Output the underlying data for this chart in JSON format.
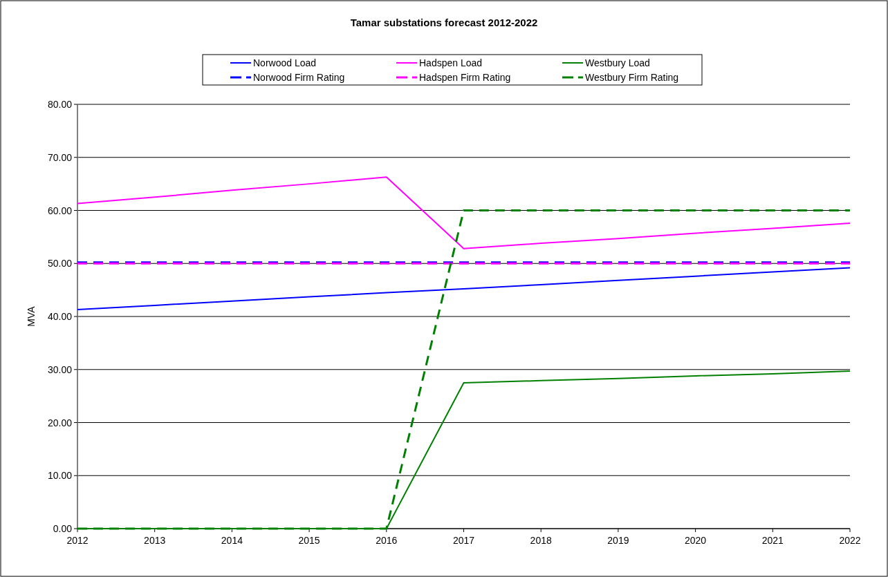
{
  "chart_data": {
    "type": "line",
    "title": "Tamar substations forecast 2012-2022",
    "ylabel": "MVA",
    "x": [
      2012,
      2013,
      2014,
      2015,
      2016,
      2017,
      2018,
      2019,
      2020,
      2021,
      2022
    ],
    "xlim": [
      2012,
      2022
    ],
    "xticks": [
      2012,
      2013,
      2014,
      2015,
      2016,
      2017,
      2018,
      2019,
      2020,
      2021,
      2022
    ],
    "ylim": [
      0,
      80
    ],
    "yticks": [
      {
        "value": 0,
        "label": "0.00"
      },
      {
        "value": 10,
        "label": "10.00"
      },
      {
        "value": 20,
        "label": "20.00"
      },
      {
        "value": 30,
        "label": "30.00"
      },
      {
        "value": 40,
        "label": "40.00"
      },
      {
        "value": 50,
        "label": "50.00"
      },
      {
        "value": 60,
        "label": "60.00"
      },
      {
        "value": 70,
        "label": "70.00"
      },
      {
        "value": 80,
        "label": "80.00"
      }
    ],
    "grid": "y",
    "legend": "top",
    "marker": "none",
    "series": [
      {
        "name": "Norwood Load",
        "color": "#0000ff",
        "line_style": "solid",
        "values": [
          41.3,
          42.1,
          42.9,
          43.7,
          44.5,
          45.2,
          46.0,
          46.8,
          47.6,
          48.4,
          49.2
        ]
      },
      {
        "name": "Hadspen Load",
        "color": "#ff00ff",
        "line_style": "solid",
        "values": [
          61.3,
          62.5,
          63.8,
          65.0,
          66.3,
          52.8,
          53.8,
          54.7,
          55.7,
          56.6,
          57.6
        ]
      },
      {
        "name": "Westbury Load",
        "color": "#008000",
        "line_style": "solid",
        "values": [
          0,
          0,
          0,
          0,
          0,
          27.5,
          27.9,
          28.3,
          28.8,
          29.2,
          29.7
        ]
      },
      {
        "name": "Norwood Firm Rating",
        "color": "#0000ff",
        "line_style": "dashed",
        "values": [
          50.2,
          50.2,
          50.2,
          50.2,
          50.2,
          50.2,
          50.2,
          50.2,
          50.2,
          50.2,
          50.2
        ]
      },
      {
        "name": "Hadspen Firm Rating",
        "color": "#ff00ff",
        "line_style": "dashed",
        "values": [
          50,
          50,
          50,
          50,
          50,
          50,
          50,
          50,
          50,
          50,
          50
        ]
      },
      {
        "name": "Westbury Firm Rating",
        "color": "#008000",
        "line_style": "dashed",
        "values": [
          0,
          0,
          0,
          0,
          0,
          60,
          60,
          60,
          60,
          60,
          60
        ]
      }
    ]
  }
}
